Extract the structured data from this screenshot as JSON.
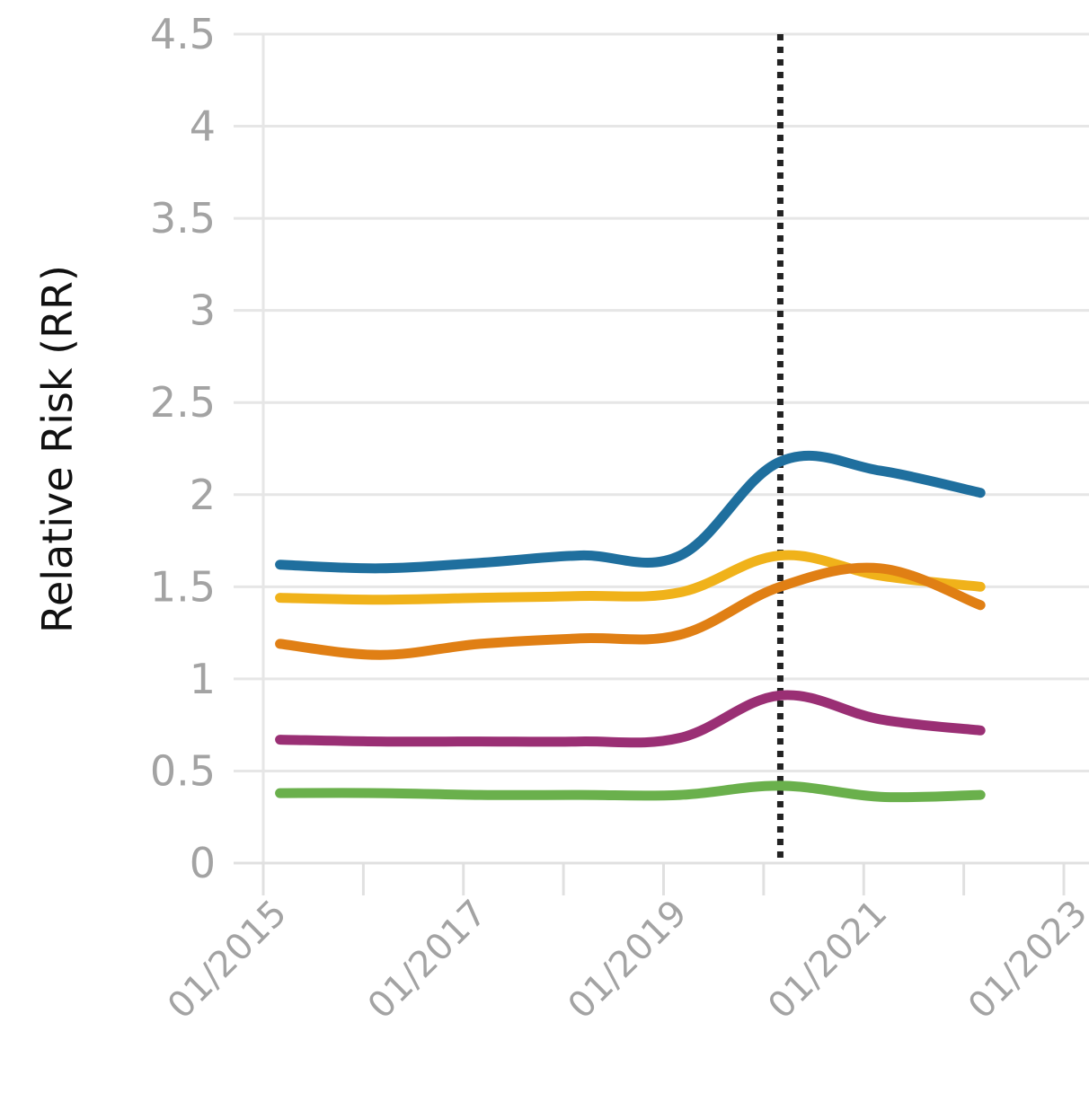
{
  "chart_data": {
    "type": "line",
    "title": "",
    "xlabel": "",
    "ylabel": "Relative Risk (RR)",
    "ylim": [
      0,
      4.5
    ],
    "xlim": [
      "2015-01",
      "2023-01"
    ],
    "y_ticks": [
      {
        "value": 0,
        "label": "0"
      },
      {
        "value": 0.5,
        "label": "0.5"
      },
      {
        "value": 1,
        "label": "1"
      },
      {
        "value": 1.5,
        "label": "1.5"
      },
      {
        "value": 2,
        "label": "2"
      },
      {
        "value": 2.5,
        "label": "2.5"
      },
      {
        "value": 3,
        "label": "3"
      },
      {
        "value": 3.5,
        "label": "3.5"
      },
      {
        "value": 4,
        "label": "4"
      },
      {
        "value": 4.5,
        "label": "4.5"
      }
    ],
    "x_tick_marks": [
      "2015-01",
      "2016-01",
      "2017-01",
      "2018-01",
      "2019-01",
      "2020-01",
      "2021-01",
      "2022-01",
      "2023-01"
    ],
    "x_tick_labels": [
      {
        "date": "2015-01",
        "label": "01/2015"
      },
      {
        "date": "2017-01",
        "label": "01/2017"
      },
      {
        "date": "2019-01",
        "label": "01/2019"
      },
      {
        "date": "2021-01",
        "label": "01/2021"
      },
      {
        "date": "2023-01",
        "label": "01/2023"
      }
    ],
    "reference_line": {
      "x": "2020-03"
    },
    "grid": true,
    "legend": "none",
    "series": [
      {
        "color": "#1f6f9e",
        "points": [
          {
            "x": "2015-03",
            "y": 1.62
          },
          {
            "x": "2016-03",
            "y": 1.6
          },
          {
            "x": "2017-03",
            "y": 1.63
          },
          {
            "x": "2018-03",
            "y": 1.67
          },
          {
            "x": "2019-03",
            "y": 1.67
          },
          {
            "x": "2020-03",
            "y": 2.18
          },
          {
            "x": "2021-03",
            "y": 2.13
          },
          {
            "x": "2022-03",
            "y": 2.01
          }
        ]
      },
      {
        "color": "#f0b21a",
        "points": [
          {
            "x": "2015-03",
            "y": 1.44
          },
          {
            "x": "2016-03",
            "y": 1.43
          },
          {
            "x": "2017-03",
            "y": 1.44
          },
          {
            "x": "2018-03",
            "y": 1.45
          },
          {
            "x": "2019-03",
            "y": 1.47
          },
          {
            "x": "2020-03",
            "y": 1.67
          },
          {
            "x": "2021-03",
            "y": 1.56
          },
          {
            "x": "2022-03",
            "y": 1.5
          }
        ]
      },
      {
        "color": "#e07f14",
        "points": [
          {
            "x": "2015-03",
            "y": 1.19
          },
          {
            "x": "2016-03",
            "y": 1.13
          },
          {
            "x": "2017-03",
            "y": 1.19
          },
          {
            "x": "2018-03",
            "y": 1.22
          },
          {
            "x": "2019-03",
            "y": 1.24
          },
          {
            "x": "2020-03",
            "y": 1.5
          },
          {
            "x": "2021-03",
            "y": 1.6
          },
          {
            "x": "2022-03",
            "y": 1.4
          }
        ]
      },
      {
        "color": "#9a2f74",
        "points": [
          {
            "x": "2015-03",
            "y": 0.67
          },
          {
            "x": "2016-03",
            "y": 0.66
          },
          {
            "x": "2017-03",
            "y": 0.66
          },
          {
            "x": "2018-03",
            "y": 0.66
          },
          {
            "x": "2019-03",
            "y": 0.68
          },
          {
            "x": "2020-03",
            "y": 0.91
          },
          {
            "x": "2021-03",
            "y": 0.78
          },
          {
            "x": "2022-03",
            "y": 0.72
          }
        ]
      },
      {
        "color": "#6ab04c",
        "points": [
          {
            "x": "2015-03",
            "y": 0.38
          },
          {
            "x": "2016-03",
            "y": 0.38
          },
          {
            "x": "2017-03",
            "y": 0.37
          },
          {
            "x": "2018-03",
            "y": 0.37
          },
          {
            "x": "2019-03",
            "y": 0.37
          },
          {
            "x": "2020-03",
            "y": 0.42
          },
          {
            "x": "2021-03",
            "y": 0.36
          },
          {
            "x": "2022-03",
            "y": 0.37
          }
        ]
      }
    ]
  }
}
